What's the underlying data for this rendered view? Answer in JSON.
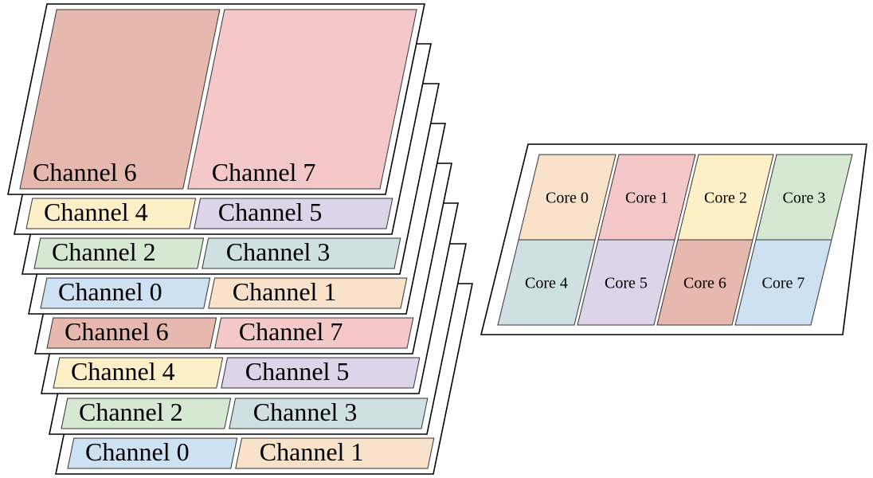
{
  "colors": {
    "core0": "#f9e2c9",
    "core1": "#f4c8c8",
    "core2": "#fdf0c8",
    "core3": "#d7e8d2",
    "core4": "#cfe0e3",
    "core5": "#dcd4e8",
    "core6": "#e6b8ae",
    "core7": "#cde1f2",
    "channel0": "#cde1f2",
    "channel1": "#f9e2c9",
    "channel2": "#d7e8d2",
    "channel3": "#cfe0e3",
    "channel4": "#fdf0c8",
    "channel5": "#dcd4e8",
    "channel6": "#e6b8ae",
    "channel7": "#f4c8c8"
  },
  "stack": {
    "layers": [
      {
        "left": "Channel 0",
        "right": "Channel 1"
      },
      {
        "left": "Channel 2",
        "right": "Channel 3"
      },
      {
        "left": "Channel 4",
        "right": "Channel 5"
      },
      {
        "left": "Channel 6",
        "right": "Channel 7"
      },
      {
        "left": "Channel 0",
        "right": "Channel 1"
      },
      {
        "left": "Channel 2",
        "right": "Channel 3"
      },
      {
        "left": "Channel 4",
        "right": "Channel 5"
      },
      {
        "left": "Channel 6",
        "right": "Channel 7"
      }
    ]
  },
  "cores": {
    "grid": [
      [
        "Core 0",
        "Core 1",
        "Core 2",
        "Core 3"
      ],
      [
        "Core 4",
        "Core 5",
        "Core 6",
        "Core 7"
      ]
    ]
  }
}
